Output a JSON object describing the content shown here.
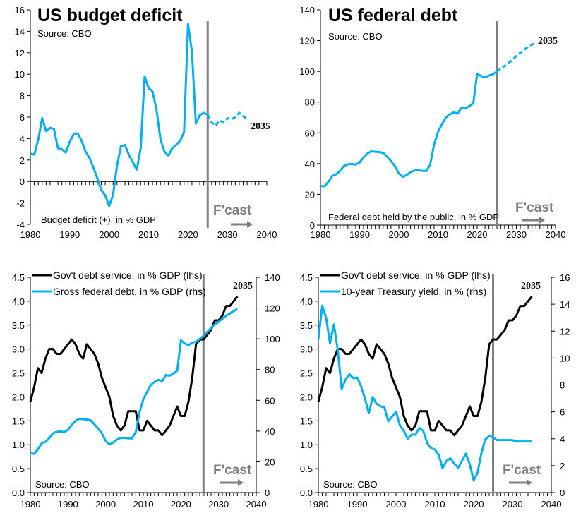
{
  "colors": {
    "blue": "#00B0F0",
    "black": "#000000",
    "forecast_line": "#808080"
  },
  "chart_data": [
    {
      "type": "line",
      "title": "US budget deficit",
      "source": "Source: CBO",
      "xlabel": "Budget deficit (+), in % GDP",
      "end_label": "2035",
      "forecast_label": "F'cast",
      "forecast_start": 2025,
      "xlim": [
        1980,
        2040
      ],
      "xticks": [
        1980,
        1990,
        2000,
        2010,
        2020,
        2030,
        2040
      ],
      "ylim": [
        -4,
        16
      ],
      "yticks": [
        -4,
        -2,
        0,
        2,
        4,
        6,
        8,
        10,
        12,
        14,
        16
      ],
      "x_start": 1980,
      "series": [
        {
          "name": "Budget deficit",
          "axis": "left",
          "color": "#00B0F0",
          "dashed_after_forecast": true,
          "values": [
            2.6,
            2.5,
            3.9,
            5.9,
            4.7,
            5.0,
            4.9,
            3.1,
            3.0,
            2.7,
            3.7,
            4.4,
            4.5,
            3.8,
            2.8,
            2.2,
            1.3,
            0.3,
            -0.8,
            -1.3,
            -2.3,
            -1.2,
            1.5,
            3.3,
            3.4,
            2.5,
            1.8,
            1.1,
            3.1,
            9.8,
            8.7,
            8.4,
            6.7,
            4.0,
            2.8,
            2.4,
            3.1,
            3.4,
            3.8,
            4.6,
            14.7,
            12.1,
            5.4,
            6.2,
            6.4,
            6.2,
            5.5,
            5.2,
            5.7,
            5.5,
            5.9,
            5.8,
            6.0,
            6.4,
            6.1,
            5.8
          ]
        }
      ]
    },
    {
      "type": "line",
      "title": "US federal debt",
      "source": "Source: CBO",
      "xlabel": "Federal debt held by the public, in % GDP",
      "end_label": "2035",
      "forecast_label": "F'cast",
      "forecast_start": 2025,
      "xlim": [
        1980,
        2040
      ],
      "xticks": [
        1980,
        1990,
        2000,
        2010,
        2020,
        2030,
        2040
      ],
      "ylim": [
        0,
        140
      ],
      "yticks": [
        0,
        20,
        40,
        60,
        80,
        100,
        120,
        140
      ],
      "x_start": 1980,
      "series": [
        {
          "name": "Federal debt held by the public",
          "axis": "left",
          "color": "#00B0F0",
          "dashed_after_forecast": true,
          "values": [
            25.5,
            25.2,
            28,
            32,
            33,
            35.3,
            38.5,
            39.5,
            39.8,
            39.3,
            40.8,
            44,
            46.6,
            48,
            47.7,
            47.5,
            47,
            44.5,
            41.6,
            38.5,
            33.6,
            31.4,
            32.5,
            34.5,
            35.5,
            35.6,
            35.3,
            35.2,
            39.3,
            52.3,
            60.6,
            65.5,
            70,
            72,
            73.3,
            72.5,
            76.4,
            76,
            77.4,
            79.2,
            98.4,
            97,
            96,
            97.3,
            98,
            100,
            101.7,
            103.5,
            105.5,
            107.5,
            110,
            112,
            114,
            116,
            117.5,
            118.5
          ]
        }
      ]
    },
    {
      "type": "line",
      "source": "Source: CBO",
      "end_label": "2035",
      "forecast_label": "F'cast",
      "forecast_start": 2026,
      "xlim": [
        1980,
        2040
      ],
      "xticks": [
        1980,
        1990,
        2000,
        2010,
        2020,
        2030,
        2040
      ],
      "ylim": [
        0,
        4.5
      ],
      "yticks": [
        "0.0",
        "0.5",
        "1.0",
        "1.5",
        "2.0",
        "2.5",
        "3.0",
        "3.5",
        "4.0",
        "4.5"
      ],
      "y2lim": [
        0,
        140
      ],
      "y2ticks": [
        0,
        20,
        40,
        60,
        80,
        100,
        120,
        140
      ],
      "x_start": 1980,
      "series": [
        {
          "name": "Gov't debt service, in % GDP (lhs)",
          "axis": "left",
          "color": "#000000",
          "values": [
            1.9,
            2.2,
            2.6,
            2.5,
            2.8,
            3.0,
            3.0,
            2.9,
            2.9,
            3.0,
            3.1,
            3.2,
            3.1,
            2.9,
            2.8,
            3.1,
            3.0,
            2.9,
            2.7,
            2.4,
            2.2,
            2.0,
            1.6,
            1.4,
            1.3,
            1.4,
            1.7,
            1.7,
            1.7,
            1.3,
            1.3,
            1.5,
            1.4,
            1.3,
            1.3,
            1.2,
            1.3,
            1.4,
            1.6,
            1.8,
            1.6,
            1.6,
            1.9,
            2.4,
            3.1,
            3.2,
            3.2,
            3.3,
            3.4,
            3.6,
            3.6,
            3.7,
            3.9,
            3.9,
            4.0,
            4.1
          ]
        },
        {
          "name": "Gross federal debt, in % GDP (rhs)",
          "axis": "right",
          "color": "#00B0F0",
          "values": [
            25.5,
            25.2,
            28,
            32,
            33,
            35.3,
            38.5,
            39.5,
            39.8,
            39.3,
            40.8,
            44,
            46.6,
            48,
            47.7,
            47.5,
            47,
            44.5,
            41.6,
            38.5,
            33.6,
            31.4,
            32.5,
            34.5,
            35.5,
            35.6,
            35.3,
            35.2,
            39.3,
            52.3,
            60.6,
            65.5,
            70,
            72,
            73.3,
            72.5,
            76.4,
            76,
            77.4,
            79.2,
            99,
            97,
            95.8,
            97.5,
            98,
            100,
            102,
            104.5,
            107,
            109.5,
            111,
            113,
            115,
            116.5,
            118,
            119.5
          ]
        }
      ]
    },
    {
      "type": "line",
      "source": "Source: CBO",
      "end_label": "2035",
      "forecast_label": "F'cast",
      "forecast_start": 2025,
      "xlim": [
        1980,
        2040
      ],
      "xticks": [
        1980,
        1990,
        2000,
        2010,
        2020,
        2030,
        2040
      ],
      "ylim": [
        0,
        4.5
      ],
      "yticks": [
        "0.0",
        "0.5",
        "1.0",
        "1.5",
        "2.0",
        "2.5",
        "3.0",
        "3.5",
        "4.0",
        "4.5"
      ],
      "y2lim": [
        0,
        16
      ],
      "y2ticks": [
        0,
        2,
        4,
        6,
        8,
        10,
        12,
        14,
        16
      ],
      "x_start": 1980,
      "series": [
        {
          "name": "Gov't debt service, in % GDP (lhs)",
          "axis": "left",
          "color": "#000000",
          "values": [
            1.9,
            2.2,
            2.6,
            2.5,
            2.8,
            3.0,
            3.0,
            2.9,
            2.9,
            3.0,
            3.1,
            3.2,
            3.1,
            2.9,
            2.8,
            3.1,
            3.0,
            2.9,
            2.7,
            2.4,
            2.2,
            2.0,
            1.6,
            1.4,
            1.3,
            1.4,
            1.7,
            1.7,
            1.7,
            1.3,
            1.3,
            1.5,
            1.4,
            1.3,
            1.3,
            1.2,
            1.3,
            1.4,
            1.6,
            1.8,
            1.6,
            1.6,
            1.9,
            2.4,
            3.1,
            3.2,
            3.2,
            3.3,
            3.4,
            3.6,
            3.6,
            3.7,
            3.9,
            3.9,
            4.0,
            4.1
          ]
        },
        {
          "name": "10-year Treasury yield, in % (rhs)",
          "axis": "right",
          "color": "#00B0F0",
          "values": [
            11.4,
            13.9,
            13.0,
            11.1,
            12.5,
            10.6,
            7.7,
            8.4,
            8.8,
            8.5,
            8.55,
            7.9,
            7.0,
            5.9,
            7.1,
            6.6,
            6.4,
            6.35,
            5.3,
            5.65,
            6.0,
            5.0,
            4.6,
            4.0,
            4.3,
            4.3,
            4.8,
            4.6,
            3.7,
            3.3,
            3.2,
            2.8,
            1.8,
            2.35,
            2.55,
            2.15,
            1.85,
            2.35,
            2.9,
            2.1,
            0.9,
            1.45,
            2.95,
            3.95,
            4.2,
            4.1,
            3.9,
            3.9,
            3.9,
            3.9,
            3.9,
            3.8,
            3.8,
            3.8,
            3.8,
            3.8
          ]
        }
      ]
    }
  ]
}
